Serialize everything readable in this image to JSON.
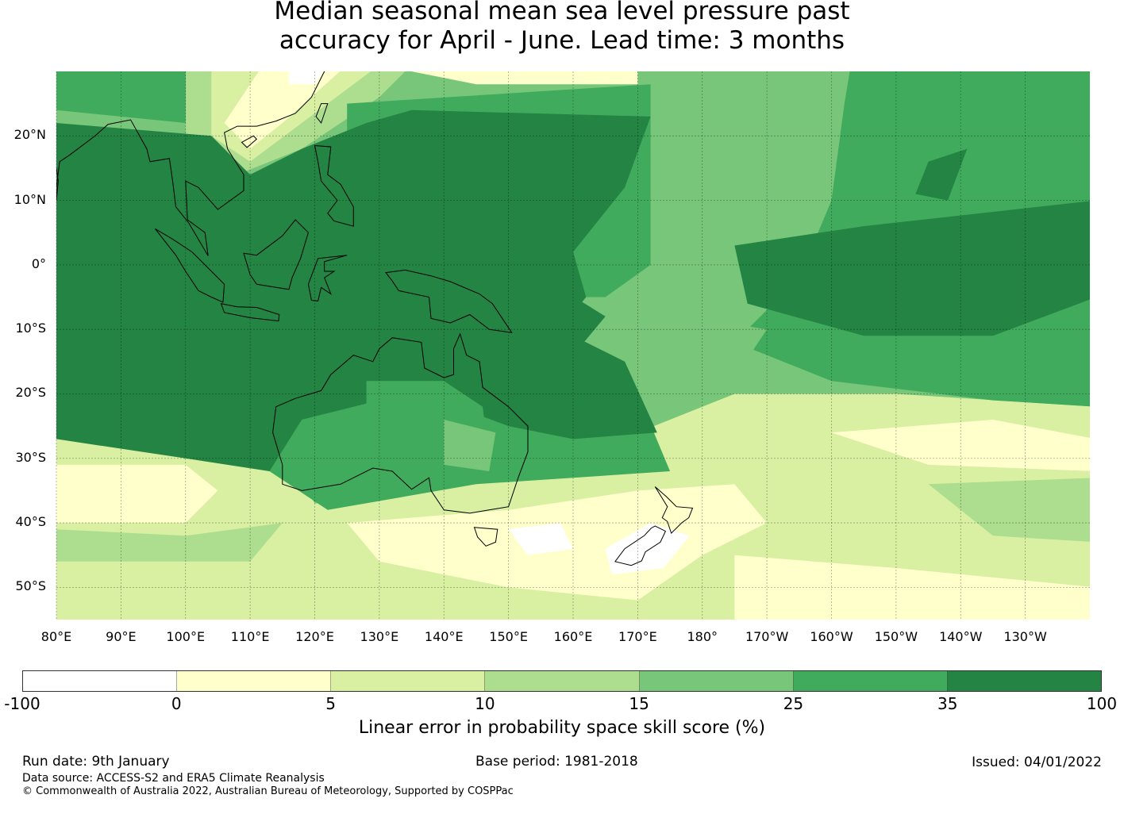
{
  "title_lines": [
    "Median seasonal mean sea level pressure past",
    "accuracy for April - June. Lead time: 3 months"
  ],
  "map": {
    "lat_labels": [
      "20°N",
      "10°N",
      "0°",
      "10°S",
      "20°S",
      "30°S",
      "40°S",
      "50°S"
    ],
    "lat_values": [
      20,
      10,
      0,
      -10,
      -20,
      -30,
      -40,
      -50
    ],
    "lon_labels": [
      "80°E",
      "90°E",
      "100°E",
      "110°E",
      "120°E",
      "130°E",
      "140°E",
      "150°E",
      "160°E",
      "170°E",
      "180°",
      "170°W",
      "160°W",
      "150°W",
      "140°W",
      "130°W"
    ],
    "lon_values": [
      80,
      90,
      100,
      110,
      120,
      130,
      140,
      150,
      160,
      170,
      180,
      190,
      200,
      210,
      220,
      230
    ],
    "extent": {
      "lon_min": 80,
      "lon_max": 240,
      "lat_min": -55,
      "lat_max": 30
    }
  },
  "colorbar": {
    "ticks": [
      "-100",
      "0",
      "5",
      "10",
      "15",
      "25",
      "35",
      "100"
    ],
    "colors": [
      "#ffffff",
      "#ffffcc",
      "#d9f0a3",
      "#addd8e",
      "#78c679",
      "#41ab5d",
      "#238443"
    ],
    "label": "Linear error in probability space skill score (%)"
  },
  "footer": {
    "run_date": "Run date: 9th January",
    "base_period": "Base period: 1981-2018",
    "issued": "Issued: 04/01/2022",
    "data_source": "Data source: ACCESS-S2 and ERA5 Climate Reanalysis",
    "copyright": "© Commonwealth of Australia 2022, Australian Bureau of Meteorology, Supported by COSPPac"
  }
}
